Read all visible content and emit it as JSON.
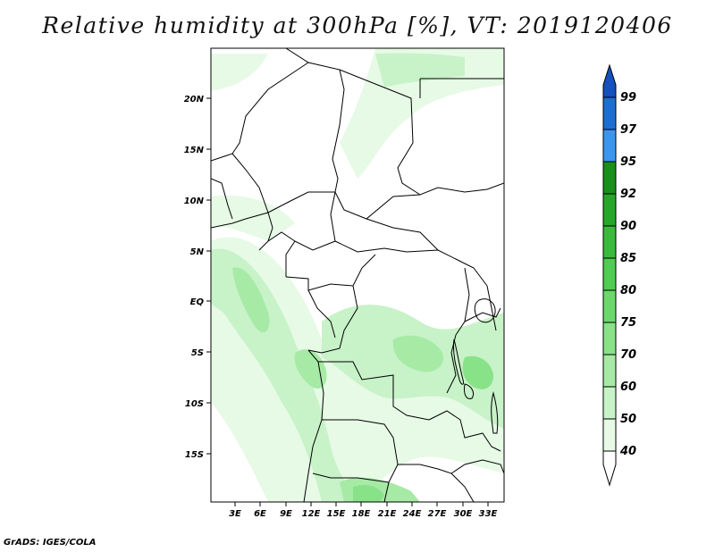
{
  "title": "Relative humidity at 300hPa [%], VT: 2019120406",
  "credit": "GrADS: IGES/COLA",
  "map": {
    "lat_ticks": [
      "20N",
      "15N",
      "10N",
      "5N",
      "EQ",
      "5S",
      "10S",
      "15S"
    ],
    "lon_ticks": [
      "3E",
      "6E",
      "9E",
      "12E",
      "15E",
      "18E",
      "21E",
      "24E",
      "27E",
      "30E",
      "33E"
    ]
  },
  "colorbar": {
    "labels": [
      "99",
      "97",
      "95",
      "92",
      "90",
      "85",
      "80",
      "75",
      "70",
      "60",
      "50",
      "40"
    ],
    "colors": [
      "#ffffff",
      "#e6fae6",
      "#c8f2c8",
      "#a6eaa6",
      "#88e288",
      "#6cd86c",
      "#50cc50",
      "#3cba3c",
      "#28a628",
      "#1a8f1a",
      "#3c96f0",
      "#1e6ed2",
      "#1450be"
    ]
  }
}
